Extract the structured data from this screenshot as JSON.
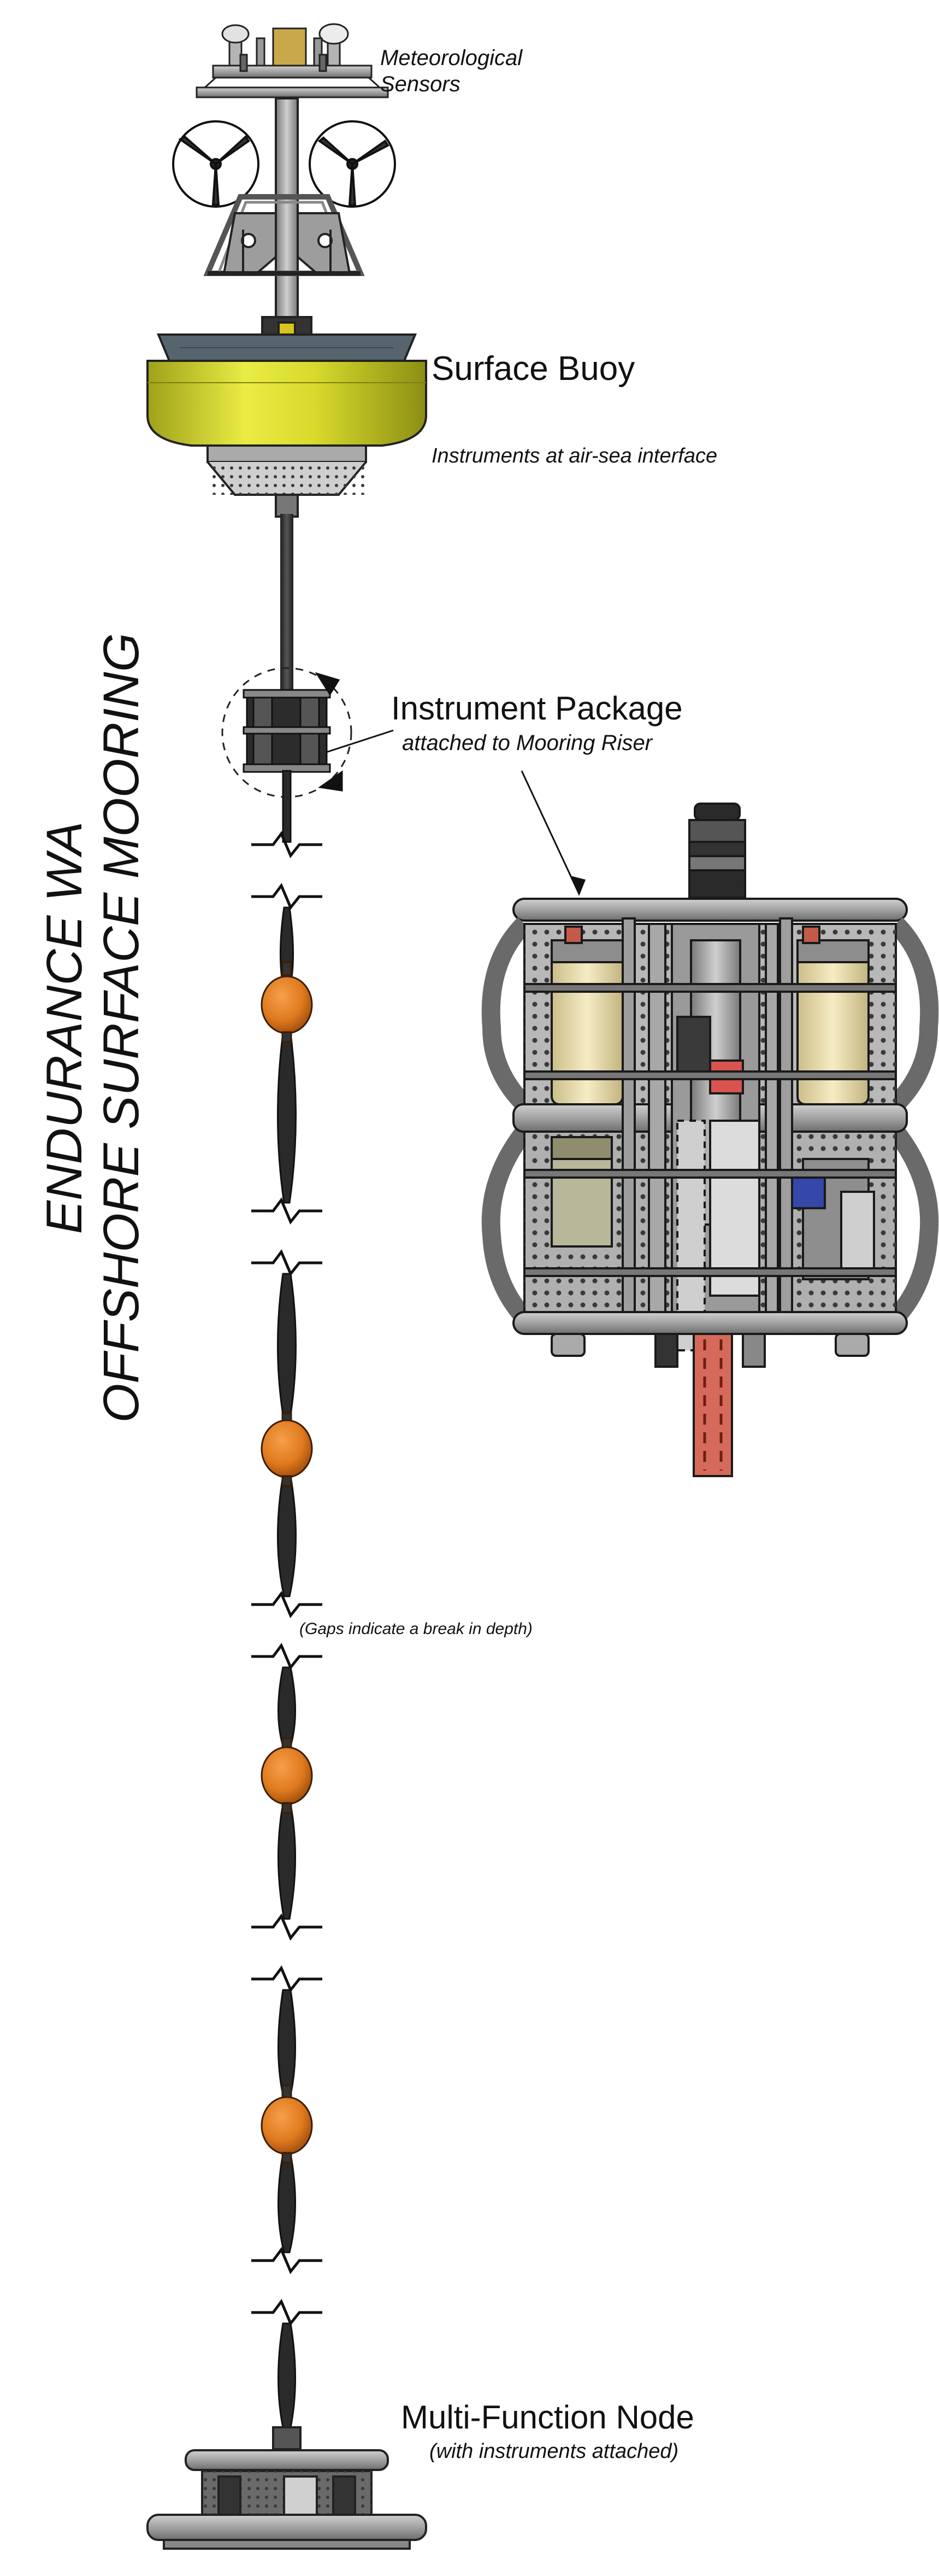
{
  "title": {
    "line1": "ENDURANCE WA",
    "line2": "OFFSHORE SURFACE MOORING"
  },
  "labels": {
    "meteorological": [
      "Meteorological",
      "Sensors"
    ],
    "surface_buoy": "Surface Buoy",
    "surface_buoy_sub": "Instruments at air-sea interface",
    "instrument_package": "Instrument Package",
    "instrument_package_sub": "attached to Mooring Riser",
    "gaps_note": "(Gaps indicate a break in depth)",
    "multi_function_node": "Multi-Function Node",
    "multi_function_node_sub": "(with instruments attached)"
  },
  "colors": {
    "buoy_yellow": "#d9dc2a",
    "float_orange": "#e07a1e",
    "frame_gray": "#9a9a9a",
    "riser_dark": "#2f2f2f",
    "canister_tan": "#f0e3b4",
    "accent_red": "#d9534f",
    "accent_blue": "#3547a8"
  }
}
